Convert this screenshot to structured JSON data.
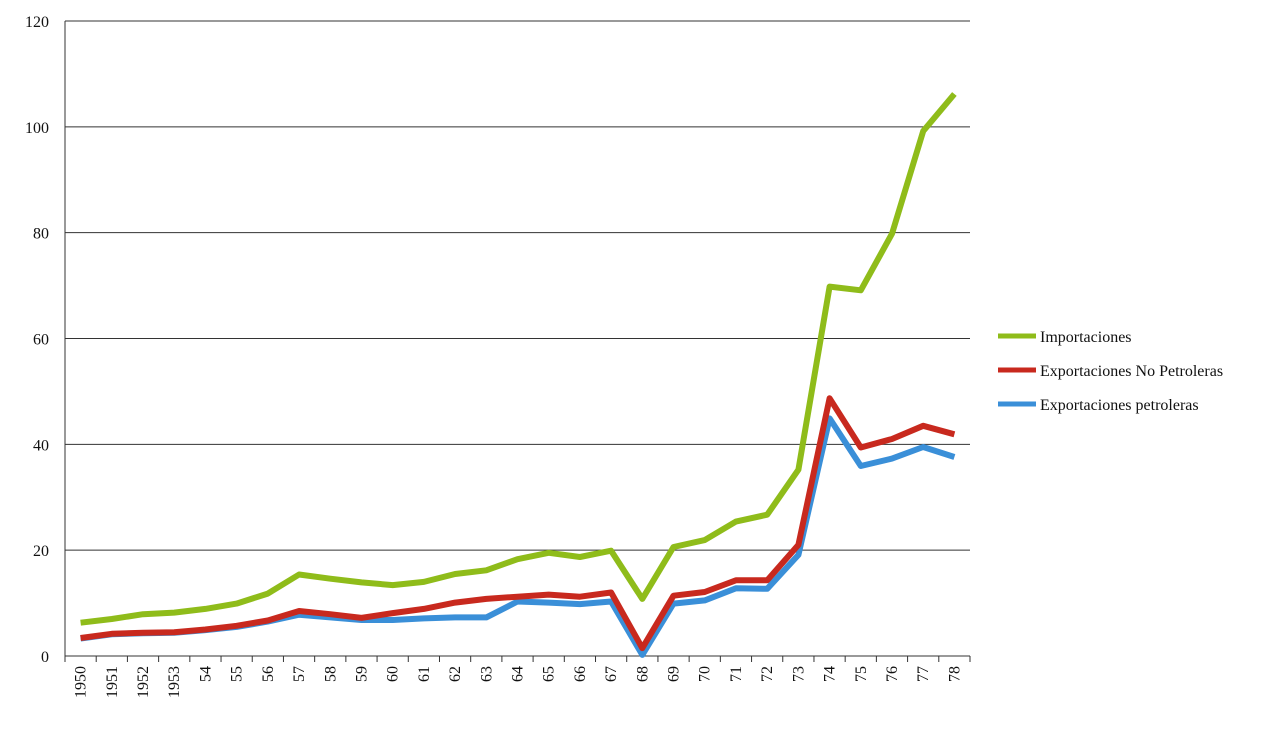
{
  "chart_data": {
    "type": "line",
    "categories": [
      "1950",
      "1951",
      "1952",
      "1953",
      "54",
      "55",
      "56",
      "57",
      "58",
      "59",
      "60",
      "61",
      "62",
      "63",
      "64",
      "65",
      "66",
      "67",
      "68",
      "69",
      "70",
      "71",
      "72",
      "73",
      "74",
      "75",
      "76",
      "77",
      "78"
    ],
    "series": [
      {
        "name": "Importaciones",
        "color": "#8fbc1a",
        "values": [
          6.3,
          7.0,
          7.9,
          8.2,
          8.9,
          9.9,
          11.8,
          15.4,
          14.6,
          13.9,
          13.4,
          14.0,
          15.5,
          16.2,
          18.3,
          19.5,
          18.7,
          19.9,
          10.8,
          20.6,
          21.9,
          25.4,
          26.7,
          35.2,
          69.8,
          69.1,
          79.8,
          99.2,
          106.2
        ]
      },
      {
        "name": "Exportaciones No Petroleras",
        "color": "#c8291e",
        "values": [
          3.4,
          4.2,
          4.4,
          4.5,
          5.0,
          5.7,
          6.7,
          8.5,
          7.9,
          7.2,
          8.1,
          8.9,
          10.1,
          10.8,
          11.2,
          11.6,
          11.2,
          12.0,
          1.5,
          11.4,
          12.1,
          14.3,
          14.3,
          21.0,
          48.7,
          39.4,
          41.0,
          43.5,
          41.9
        ]
      },
      {
        "name": "Exportaciones petroleras",
        "color": "#3a8fd8",
        "values": [
          3.3,
          4.1,
          4.3,
          4.4,
          4.9,
          5.5,
          6.5,
          7.8,
          7.3,
          6.8,
          6.8,
          7.1,
          7.3,
          7.3,
          10.3,
          10.1,
          9.8,
          10.3,
          0.2,
          9.9,
          10.5,
          12.8,
          12.7,
          19.1,
          44.9,
          35.9,
          37.3,
          39.5,
          37.6
        ]
      }
    ],
    "ylim": [
      0,
      120
    ],
    "yticks": [
      0,
      20,
      40,
      60,
      80,
      100,
      120
    ],
    "grid": true,
    "legend": "right"
  }
}
